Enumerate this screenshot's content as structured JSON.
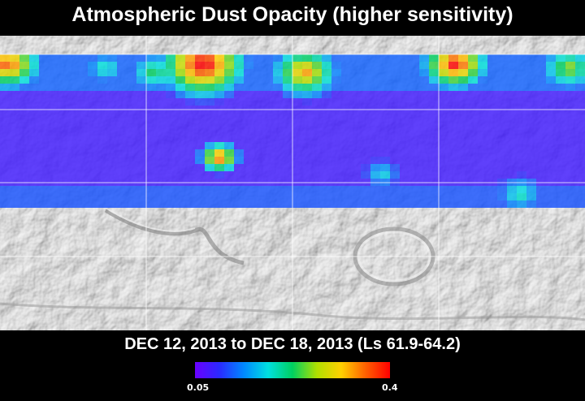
{
  "title": "Atmospheric Dust Opacity (higher sensitivity)",
  "date_range": "DEC 12, 2013 to DEC 18, 2013 (Ls 61.9-64.2)",
  "colorbar": {
    "min_label": "0.05",
    "max_label": "0.4",
    "colors": [
      "#6a00ff",
      "#2a2aff",
      "#0088ff",
      "#00e0e0",
      "#00d060",
      "#b0e000",
      "#ffd000",
      "#ff6000",
      "#ff0000"
    ]
  }
}
